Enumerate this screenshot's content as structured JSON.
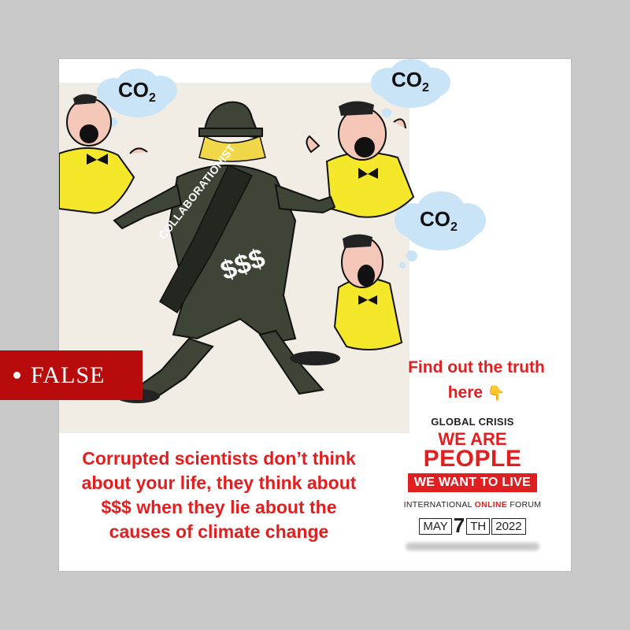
{
  "cartoon": {
    "cloud_left": "CO",
    "cloud_top_right": "CO",
    "cloud_right": "CO",
    "subscript": "2",
    "sash_text": "COLLABORATIONIST",
    "money_text": "$$$"
  },
  "caption": {
    "line1": "Corrupted scientists don’t think",
    "line2": "about your life, they think about",
    "line3": "$$$ when they lie about the",
    "line4": "causes of climate change"
  },
  "cta": {
    "line1": "Find out the truth",
    "line2": "here",
    "pointer_icon": "👇"
  },
  "ad": {
    "global": "GLOBAL CRISIS",
    "we_are": "WE ARE",
    "people": "PEOPLE",
    "want": "WE WANT TO LIVE",
    "forum_prefix": "INTERNATIONAL ",
    "forum_highlight": "ONLINE",
    "forum_suffix": " FORUM",
    "month": "MAY",
    "day": "7",
    "day_suffix": "TH",
    "year": "2022"
  },
  "badge": {
    "label": "FALSE",
    "color": "#b80c0c"
  },
  "colors": {
    "accent_red": "#e02020",
    "coat": "#3e4436",
    "shirt_yellow": "#f5e72a",
    "cloud_blue": "#c9e3f7"
  }
}
